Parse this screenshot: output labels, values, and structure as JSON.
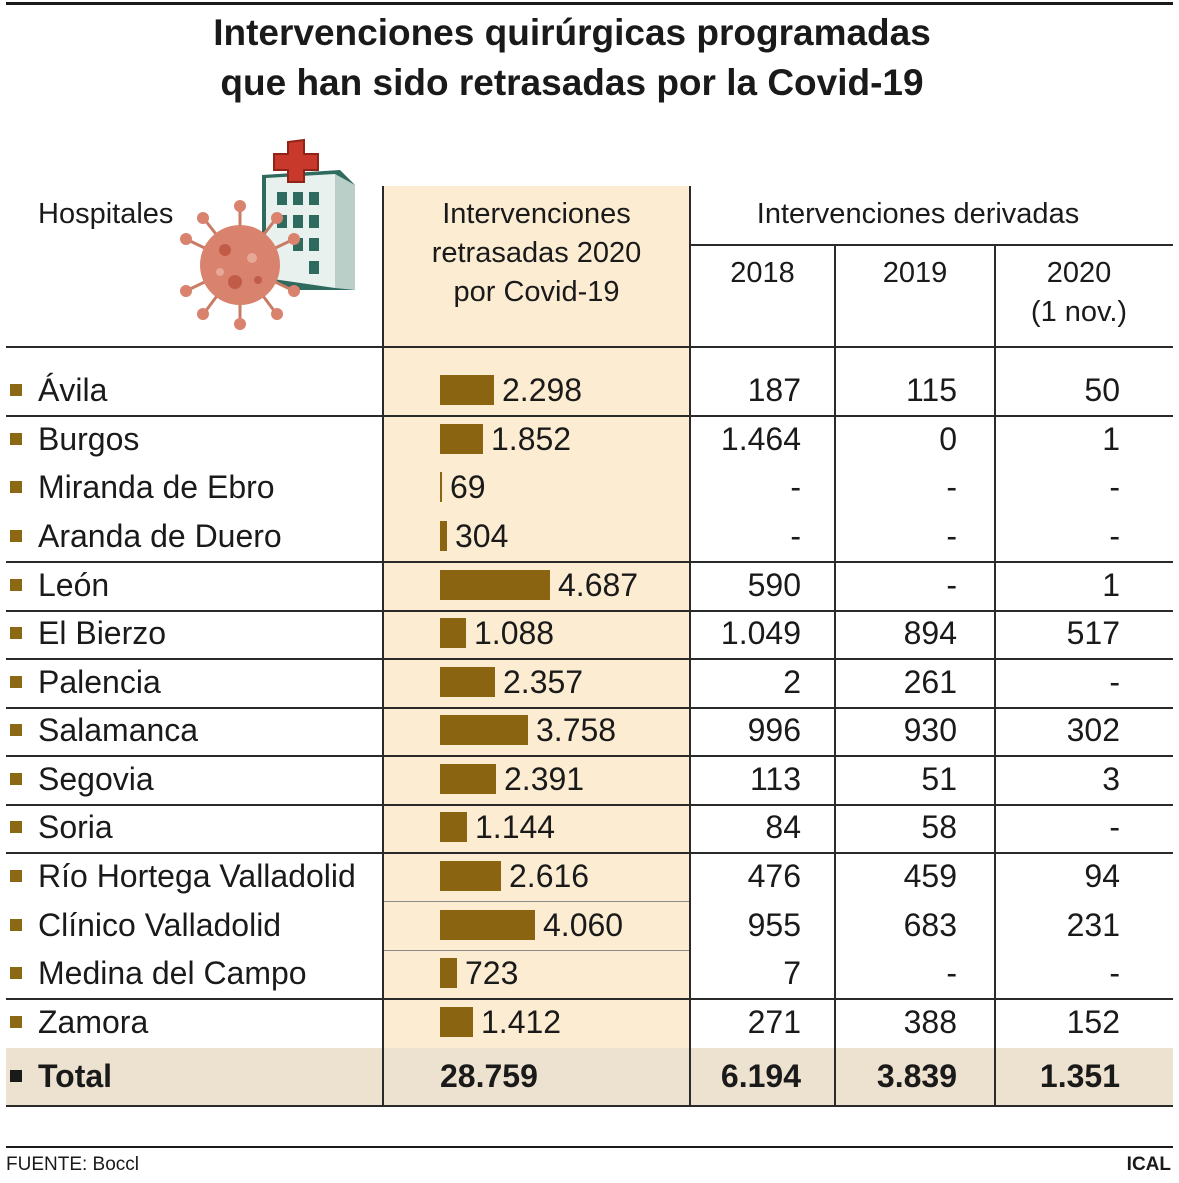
{
  "title_line1": "Intervenciones quirúrgicas programadas",
  "title_line2": "que han sido retrasadas por la Covid-19",
  "headers": {
    "hospitales": "Hospitales",
    "retrasadas_l1": "Intervenciones",
    "retrasadas_l2": "retrasadas 2020",
    "retrasadas_l3": "por Covid-19",
    "derivadas": "Intervenciones derivadas",
    "y2018": "2018",
    "y2019": "2019",
    "y2020_l1": "2020",
    "y2020_l2": "(1 nov.)"
  },
  "icons": {
    "illustration": "virus-hospital-icon",
    "bullet": "square-bullet-icon"
  },
  "colors": {
    "bar": "#8b6412",
    "highlight": "#fbecd2",
    "total_band": "#ede1cf"
  },
  "chart_data": {
    "type": "table",
    "bar_column": "Intervenciones retrasadas 2020 por Covid-19",
    "rows": [
      {
        "hospital": "Ávila",
        "value": 2298,
        "label": "2.298",
        "y2018": "187",
        "y2019": "115",
        "y2020": "50"
      },
      {
        "hospital": "Burgos",
        "value": 1852,
        "label": "1.852",
        "y2018": "1.464",
        "y2019": "0",
        "y2020": "1"
      },
      {
        "hospital": "Miranda de Ebro",
        "value": 69,
        "label": "69",
        "y2018": "-",
        "y2019": "-",
        "y2020": "-"
      },
      {
        "hospital": "Aranda de Duero",
        "value": 304,
        "label": "304",
        "y2018": "-",
        "y2019": "-",
        "y2020": "-"
      },
      {
        "hospital": "León",
        "value": 4687,
        "label": "4.687",
        "y2018": "590",
        "y2019": "-",
        "y2020": "1"
      },
      {
        "hospital": "El Bierzo",
        "value": 1088,
        "label": "1.088",
        "y2018": "1.049",
        "y2019": "894",
        "y2020": "517"
      },
      {
        "hospital": "Palencia",
        "value": 2357,
        "label": "2.357",
        "y2018": "2",
        "y2019": "261",
        "y2020": "-"
      },
      {
        "hospital": "Salamanca",
        "value": 3758,
        "label": "3.758",
        "y2018": "996",
        "y2019": "930",
        "y2020": "302"
      },
      {
        "hospital": "Segovia",
        "value": 2391,
        "label": "2.391",
        "y2018": "113",
        "y2019": "51",
        "y2020": "3"
      },
      {
        "hospital": "Soria",
        "value": 1144,
        "label": "1.144",
        "y2018": "84",
        "y2019": "58",
        "y2020": "-"
      },
      {
        "hospital": "Río Hortega Valladolid",
        "value": 2616,
        "label": "2.616",
        "y2018": "476",
        "y2019": "459",
        "y2020": "94"
      },
      {
        "hospital": "Clínico Valladolid",
        "value": 4060,
        "label": "4.060",
        "y2018": "955",
        "y2019": "683",
        "y2020": "231"
      },
      {
        "hospital": "Medina del Campo",
        "value": 723,
        "label": "723",
        "y2018": "7",
        "y2019": "-",
        "y2020": "-"
      },
      {
        "hospital": "Zamora",
        "value": 1412,
        "label": "1.412",
        "y2018": "271",
        "y2019": "388",
        "y2020": "152"
      }
    ],
    "total": {
      "hospital": "Total",
      "label": "28.759",
      "y2018": "6.194",
      "y2019": "3.839",
      "y2020": "1.351"
    }
  },
  "footer": {
    "source": "FUENTE: Boccl",
    "brand": "ICAL"
  }
}
